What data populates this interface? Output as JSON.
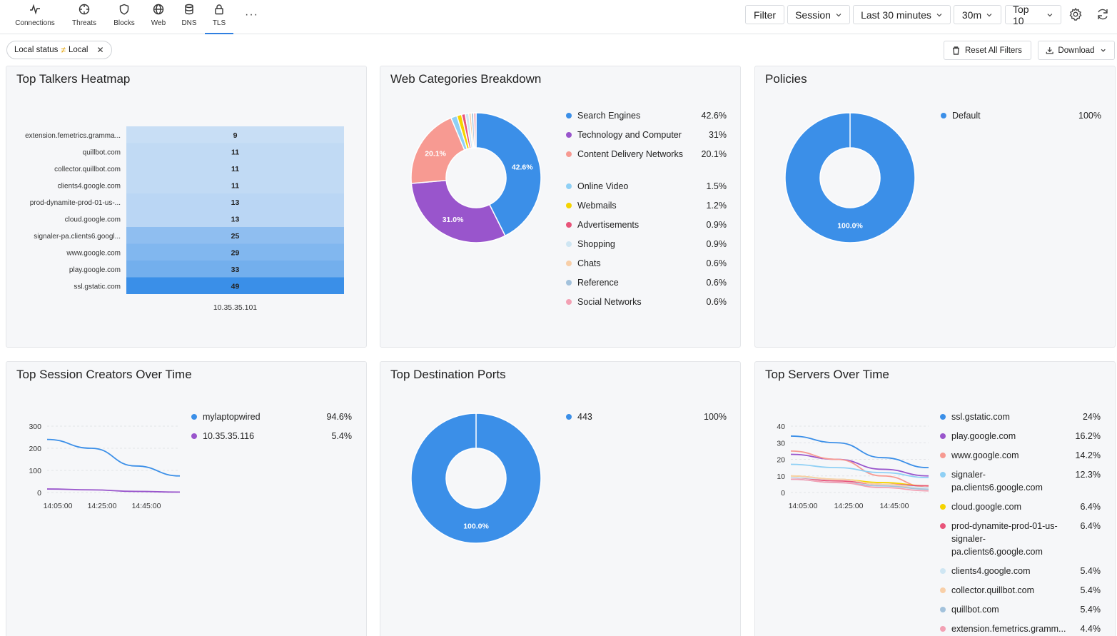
{
  "nav": {
    "tabs": [
      {
        "label": "Connections",
        "icon": "activity-icon"
      },
      {
        "label": "Threats",
        "icon": "crosshair-icon"
      },
      {
        "label": "Blocks",
        "icon": "shield-icon"
      },
      {
        "label": "Web",
        "icon": "globe-icon"
      },
      {
        "label": "DNS",
        "icon": "database-icon"
      },
      {
        "label": "TLS",
        "icon": "lock-icon"
      }
    ],
    "active_tab": "TLS",
    "more_label": "···"
  },
  "toolbar": {
    "filter_label": "Filter",
    "session_label": "Session",
    "timerange_label": "Last 30 minutes",
    "interval_label": "30m",
    "top_label": "Top 10"
  },
  "filters": {
    "chip_field": "Local status",
    "chip_op": "≠",
    "chip_value": "Local",
    "reset_label": "Reset All Filters",
    "download_label": "Download"
  },
  "colors": {
    "blue": "#3b8fe8",
    "purple": "#9955cc",
    "salmon": "#f79a92",
    "lightblue": "#8fd0f5",
    "yellow": "#f5d400",
    "red": "#e8547a",
    "paleblue": "#cfe6f3",
    "peach": "#f8cfa8",
    "grayblue": "#a3c2dc",
    "pink": "#f3a1b4"
  },
  "heatmap": {
    "title": "Top Talkers Heatmap",
    "rows": [
      {
        "label": "extension.femetrics.gramma...",
        "value": 9
      },
      {
        "label": "quillbot.com",
        "value": 11
      },
      {
        "label": "collector.quillbot.com",
        "value": 11
      },
      {
        "label": "clients4.google.com",
        "value": 11
      },
      {
        "label": "prod-dynamite-prod-01-us-...",
        "value": 13
      },
      {
        "label": "cloud.google.com",
        "value": 13
      },
      {
        "label": "signaler-pa.clients6.googl...",
        "value": 25
      },
      {
        "label": "www.google.com",
        "value": 29
      },
      {
        "label": "play.google.com",
        "value": 33
      },
      {
        "label": "ssl.gstatic.com",
        "value": 49
      }
    ],
    "column": "10.35.35.101"
  },
  "web_categories": {
    "title": "Web Categories Breakdown",
    "items": [
      {
        "name": "Search Engines",
        "value": "42.6%",
        "pct": 42.6,
        "color": "#3b8fe8"
      },
      {
        "name": "Technology and Computer",
        "value": "31%",
        "pct": 31.0,
        "color": "#9955cc"
      },
      {
        "name": "Content Delivery Networks",
        "value": "20.1%",
        "pct": 20.1,
        "color": "#f79a92"
      },
      {
        "name": "Online Video",
        "value": "1.5%",
        "pct": 1.5,
        "color": "#8fd0f5"
      },
      {
        "name": "Webmails",
        "value": "1.2%",
        "pct": 1.2,
        "color": "#f5d400"
      },
      {
        "name": "Advertisements",
        "value": "0.9%",
        "pct": 0.9,
        "color": "#e8547a"
      },
      {
        "name": "Shopping",
        "value": "0.9%",
        "pct": 0.9,
        "color": "#cfe6f3"
      },
      {
        "name": "Chats",
        "value": "0.6%",
        "pct": 0.6,
        "color": "#f8cfa8"
      },
      {
        "name": "Reference",
        "value": "0.6%",
        "pct": 0.6,
        "color": "#a3c2dc"
      },
      {
        "name": "Social Networks",
        "value": "0.6%",
        "pct": 0.6,
        "color": "#f3a1b4"
      }
    ],
    "slice_labels": [
      "42.6%",
      "31.0%",
      "20.1%"
    ]
  },
  "policies": {
    "title": "Policies",
    "items": [
      {
        "name": "Default",
        "value": "100%",
        "pct": 100,
        "color": "#3b8fe8"
      }
    ],
    "slice_label": "100.0%"
  },
  "session_creators": {
    "title": "Top Session Creators Over Time",
    "items": [
      {
        "name": "mylaptopwired",
        "value": "94.6%",
        "color": "#3b8fe8"
      },
      {
        "name": "10.35.35.116",
        "value": "5.4%",
        "color": "#9955cc"
      }
    ],
    "y_ticks": [
      "300",
      "200",
      "100",
      "0"
    ],
    "x_ticks": [
      "14:05:00",
      "14:25:00",
      "14:45:00"
    ]
  },
  "dest_ports": {
    "title": "Top Destination Ports",
    "items": [
      {
        "name": "443",
        "value": "100%",
        "pct": 100,
        "color": "#3b8fe8"
      }
    ],
    "slice_label": "100.0%"
  },
  "servers_over_time": {
    "title": "Top Servers Over Time",
    "items": [
      {
        "name": "ssl.gstatic.com",
        "value": "24%",
        "color": "#3b8fe8"
      },
      {
        "name": "play.google.com",
        "value": "16.2%",
        "color": "#9955cc"
      },
      {
        "name": "www.google.com",
        "value": "14.2%",
        "color": "#f79a92"
      },
      {
        "name": "signaler-pa.clients6.google.com",
        "value": "12.3%",
        "color": "#8fd0f5"
      },
      {
        "name": "cloud.google.com",
        "value": "6.4%",
        "color": "#f5d400"
      },
      {
        "name": "prod-dynamite-prod-01-us-signaler-pa.clients6.google.com",
        "value": "6.4%",
        "color": "#e8547a"
      },
      {
        "name": "clients4.google.com",
        "value": "5.4%",
        "color": "#cfe6f3"
      },
      {
        "name": "collector.quillbot.com",
        "value": "5.4%",
        "color": "#f8cfa8"
      },
      {
        "name": "quillbot.com",
        "value": "5.4%",
        "color": "#a3c2dc"
      },
      {
        "name": "extension.femetrics.gramm...",
        "value": "4.4%",
        "color": "#f3a1b4"
      }
    ],
    "y_ticks": [
      "40",
      "30",
      "20",
      "10",
      "0"
    ],
    "x_ticks": [
      "14:05:00",
      "14:25:00",
      "14:45:00"
    ]
  }
}
